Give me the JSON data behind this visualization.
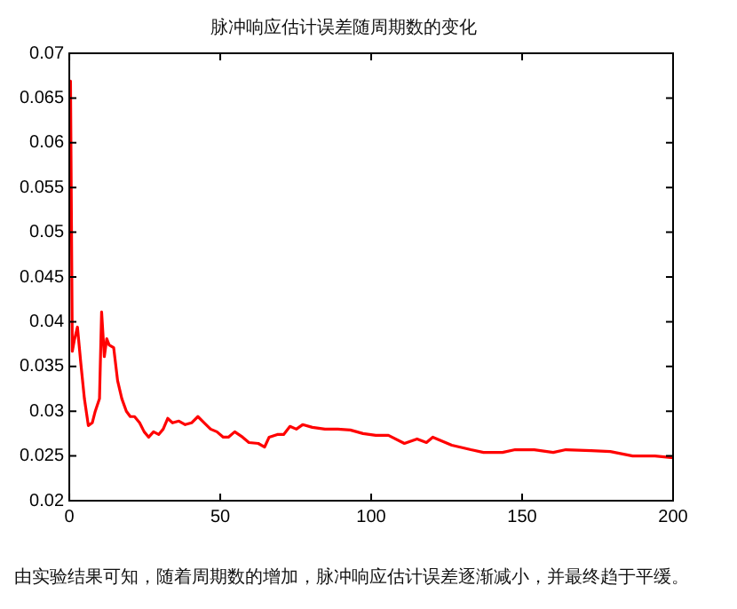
{
  "chart_data": {
    "type": "line",
    "title": "脉冲响应估计误差随周期数的变化",
    "annotations": [
      "由实验结果可知，随着周期数的增加，脉冲响应估计误差逐渐减小，并最终趋于平缓。"
    ],
    "xlim": [
      0,
      200
    ],
    "xticks": [
      0,
      50,
      100,
      150,
      200
    ],
    "ylim": [
      0.02,
      0.07
    ],
    "yticks": [
      {
        "value": 0.02,
        "label": "0.02"
      },
      {
        "value": 0.025,
        "label": "0.025"
      },
      {
        "value": 0.03,
        "label": "0.03"
      },
      {
        "value": 0.035,
        "label": "0.035"
      },
      {
        "value": 0.04,
        "label": "0.04"
      },
      {
        "value": 0.045,
        "label": "0.045"
      },
      {
        "value": 0.05,
        "label": "0.05"
      },
      {
        "value": 0.055,
        "label": "0.055"
      },
      {
        "value": 0.06,
        "label": "0.06"
      },
      {
        "value": 0.065,
        "label": "0.065"
      },
      {
        "value": 0.07,
        "label": "0.07"
      }
    ],
    "grid": false,
    "legend": false,
    "marker": "none",
    "line_style": "solid",
    "series": [
      {
        "color": "#ff0000",
        "x": [
          0,
          0.4,
          1,
          1.7,
          2.7,
          3.8,
          5,
          6.3,
          7.6,
          8.6,
          10,
          10.7,
          11.6,
          12.4,
          13.2,
          14.7,
          16,
          17.4,
          18.9,
          20.2,
          21.6,
          23.3,
          24.8,
          26.3,
          27.9,
          29.6,
          31.1,
          32.6,
          34.2,
          36.3,
          38.4,
          40.5,
          42.6,
          44.7,
          46.8,
          48.9,
          51,
          52.7,
          54.8,
          57.4,
          59.5,
          62.6,
          64.7,
          66.2,
          68.9,
          71,
          73.1,
          75.2,
          77.3,
          80.5,
          84.7,
          88.9,
          93.1,
          97.3,
          101.5,
          105.7,
          111,
          115.2,
          118.3,
          120.4,
          126.7,
          133,
          137.2,
          143.5,
          147.7,
          154,
          160.3,
          164.5,
          172.9,
          179.2,
          186.6,
          194,
          200
        ],
        "values": [
          0.05,
          0.0669,
          0.0367,
          0.038,
          0.0394,
          0.0354,
          0.0314,
          0.0284,
          0.0287,
          0.03,
          0.0314,
          0.0411,
          0.0361,
          0.0381,
          0.0374,
          0.0371,
          0.0334,
          0.0314,
          0.03,
          0.0294,
          0.0294,
          0.0287,
          0.0277,
          0.0271,
          0.0277,
          0.0274,
          0.028,
          0.0292,
          0.0287,
          0.0289,
          0.0285,
          0.0287,
          0.0294,
          0.0287,
          0.028,
          0.0277,
          0.0271,
          0.0271,
          0.0277,
          0.0271,
          0.0265,
          0.0264,
          0.026,
          0.0271,
          0.0274,
          0.0274,
          0.0283,
          0.028,
          0.0285,
          0.0282,
          0.028,
          0.028,
          0.0279,
          0.0275,
          0.0273,
          0.0273,
          0.0264,
          0.0269,
          0.0265,
          0.0271,
          0.0262,
          0.0257,
          0.0254,
          0.0254,
          0.0257,
          0.0257,
          0.0254,
          0.0257,
          0.0256,
          0.0255,
          0.025,
          0.025,
          0.0248
        ]
      }
    ]
  }
}
